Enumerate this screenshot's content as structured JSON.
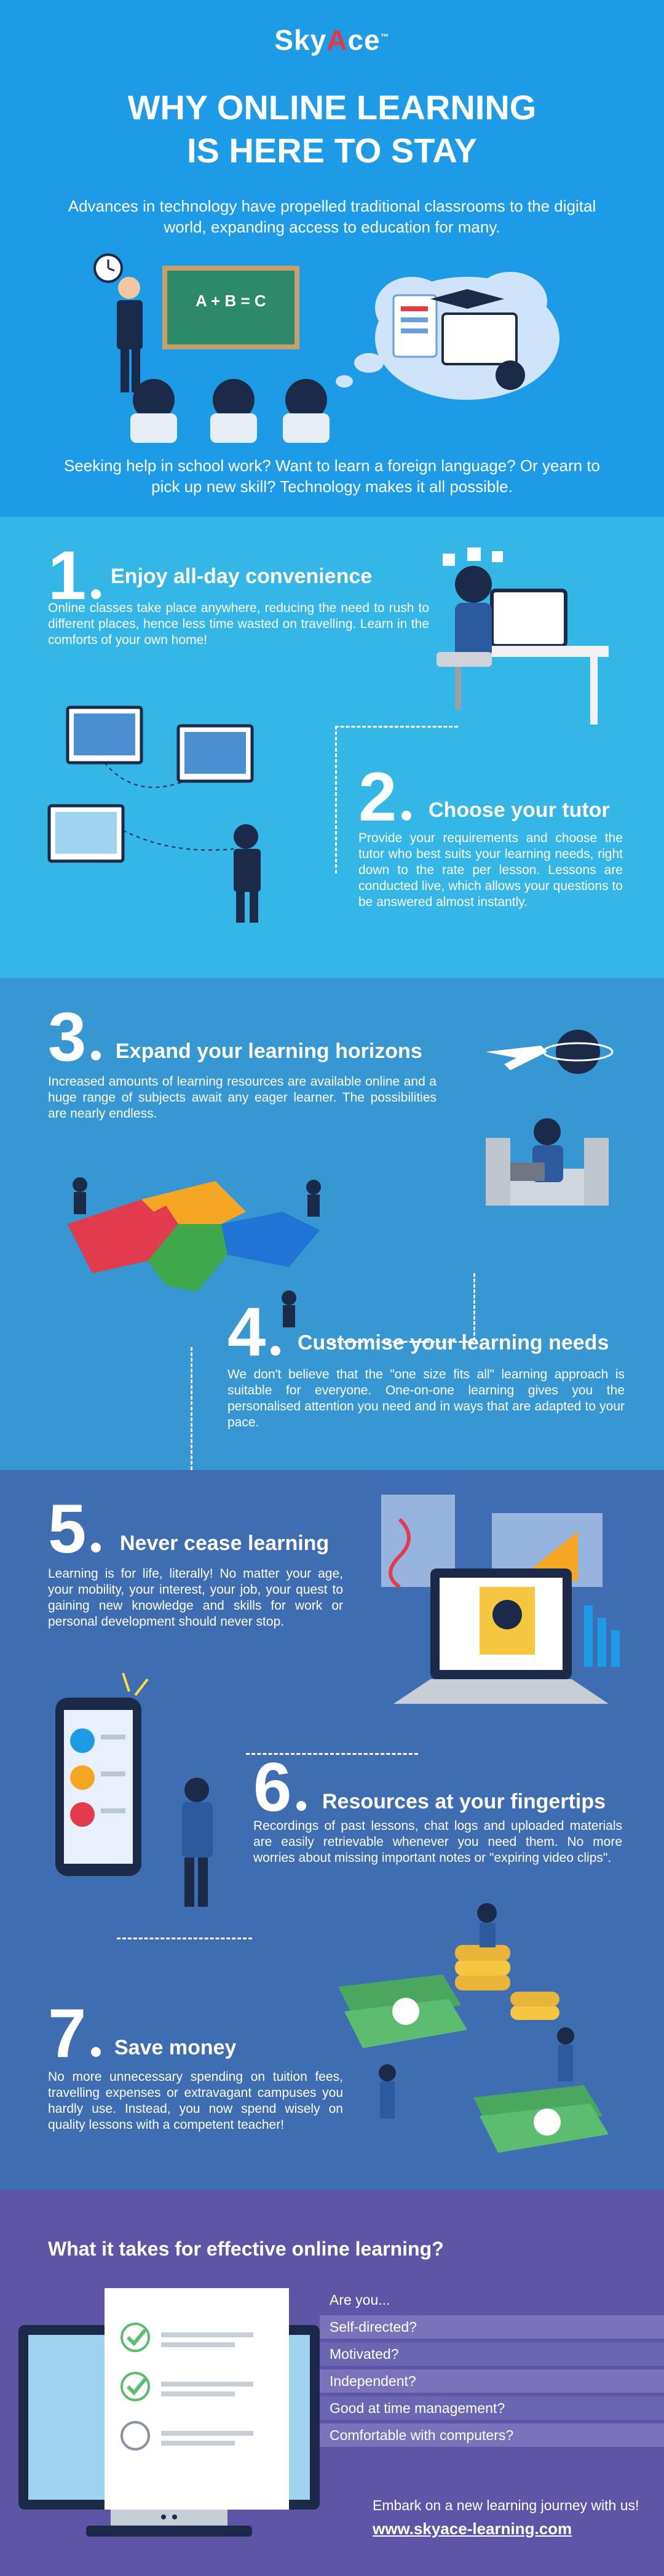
{
  "header": {
    "logo_prefix": "Sky",
    "logo_accent": "A",
    "logo_suffix": "ce",
    "logo_tm": "™",
    "title_line1": "WHY ONLINE LEARNING",
    "title_line2": "IS HERE TO STAY",
    "intro": "Advances in technology have propelled traditional classrooms to the digital world, expanding access to education for many.",
    "board_text": "A + B = C",
    "seek": "Seeking help in school work? Want to learn a foreign language? Or yearn to pick up new skill? Technology makes it all possible."
  },
  "reasons": [
    {
      "num": "1",
      "title": "Enjoy all-day convenience",
      "text": "Online classes take place anywhere, reducing the need to rush to different places, hence less time wasted on travelling. Learn in the comforts of your own home!"
    },
    {
      "num": "2",
      "title": "Choose your tutor",
      "text": "Provide your requirements and choose the tutor who best suits your learning needs, right down to the rate per lesson. Lessons are conducted live, which allows your questions to be answered almost instantly."
    },
    {
      "num": "3",
      "title": "Expand your learning horizons",
      "text": "Increased amounts of learning resources are available online and a huge range of subjects await any eager learner. The possibilities are nearly endless."
    },
    {
      "num": "4",
      "title": "Customise your learning needs",
      "text": "We don't believe that the \"one size fits all\" learning approach is suitable for everyone. One-on-one learning gives you the personalised attention you need and in ways that are adapted to your pace."
    },
    {
      "num": "5",
      "title": "Never cease learning",
      "text": "Learning is for life, literally! No matter your age, your mobility, your interest, your job, your quest to gaining new knowledge and skills for work or personal development should never stop."
    },
    {
      "num": "6",
      "title": "Resources at your fingertips",
      "text": "Recordings of past lessons, chat logs and uploaded materials are easily retrievable whenever you need them. No more worries about missing important notes or \"expiring video clips\"."
    },
    {
      "num": "7",
      "title": "Save money",
      "text": "No more unnecessary spending on tuition fees, travelling expenses or extravagant campuses you hardly use. Instead, you now spend wisely on quality lessons with a competent teacher!"
    }
  ],
  "effective": {
    "question": "What it takes for effective online learning?",
    "lead": "Are you...",
    "items": [
      "Self-directed?",
      "Motivated?",
      "Independent?",
      "Good at time management?",
      "Comfortable with computers?"
    ],
    "cta": "Embark on a new learning journey with us!",
    "url": "www.skyace-learning.com"
  },
  "colors": {
    "hero": "#1e9be6",
    "section1": "#34b6e6",
    "section2": "#3697d3",
    "section3": "#3e6db2",
    "section4": "#5e55a7",
    "logo_accent": "#e8373f"
  }
}
